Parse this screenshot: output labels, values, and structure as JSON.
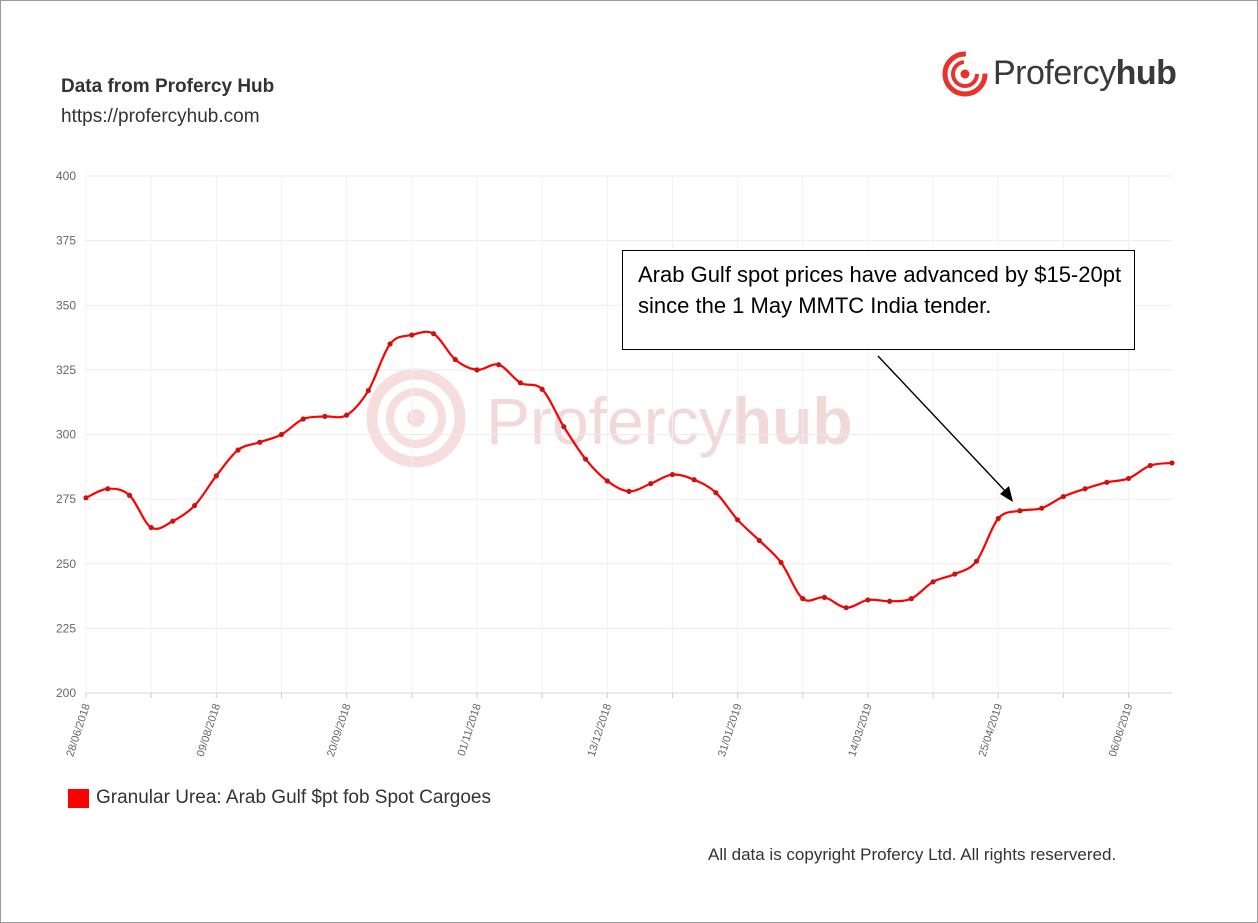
{
  "header": {
    "source_title": "Data from Profercy Hub",
    "source_url": "https://profercyhub.com"
  },
  "logo": {
    "text_regular": "Profercy",
    "text_bold": "hub"
  },
  "watermark": {
    "text_regular": "Profercy",
    "text_bold": "hub"
  },
  "annotation": {
    "text": "Arab Gulf spot prices have advanced by $15-20pt since the 1 May MMTC India tender."
  },
  "legend": {
    "label": "Granular Urea: Arab Gulf $pt fob Spot Cargoes",
    "color": "#ff0000"
  },
  "footer": {
    "copyright": "All data is copyright Profercy Ltd. All rights reservered."
  },
  "chart_data": {
    "type": "line",
    "title": "",
    "xlabel": "",
    "ylabel": "",
    "ylim": [
      200,
      400
    ],
    "yticks": [
      200,
      225,
      250,
      275,
      300,
      325,
      350,
      375,
      400
    ],
    "xtick_labels": [
      "28/06/2018",
      "09/08/2018",
      "20/09/2018",
      "01/11/2018",
      "13/12/2018",
      "31/01/2019",
      "14/03/2019",
      "25/04/2019",
      "06/06/2019"
    ],
    "grid": true,
    "legend_position": "bottom-left",
    "series": [
      {
        "name": "Granular Urea: Arab Gulf $pt fob Spot Cargoes",
        "color": "#ff0000",
        "values": [
          275.5,
          279,
          276.5,
          264,
          266.5,
          272.5,
          284,
          294,
          297,
          300,
          306,
          307,
          307.5,
          317,
          335,
          338.5,
          339,
          329,
          325,
          327,
          320,
          317.5,
          303,
          290.5,
          282,
          278,
          281,
          284.5,
          282.5,
          277.5,
          267,
          259,
          250.5,
          236.5,
          237,
          233,
          236,
          235.5,
          236.5,
          243,
          246,
          251,
          267.5,
          270.5,
          271.5,
          276,
          279,
          281.5,
          283,
          288,
          289
        ]
      }
    ]
  }
}
